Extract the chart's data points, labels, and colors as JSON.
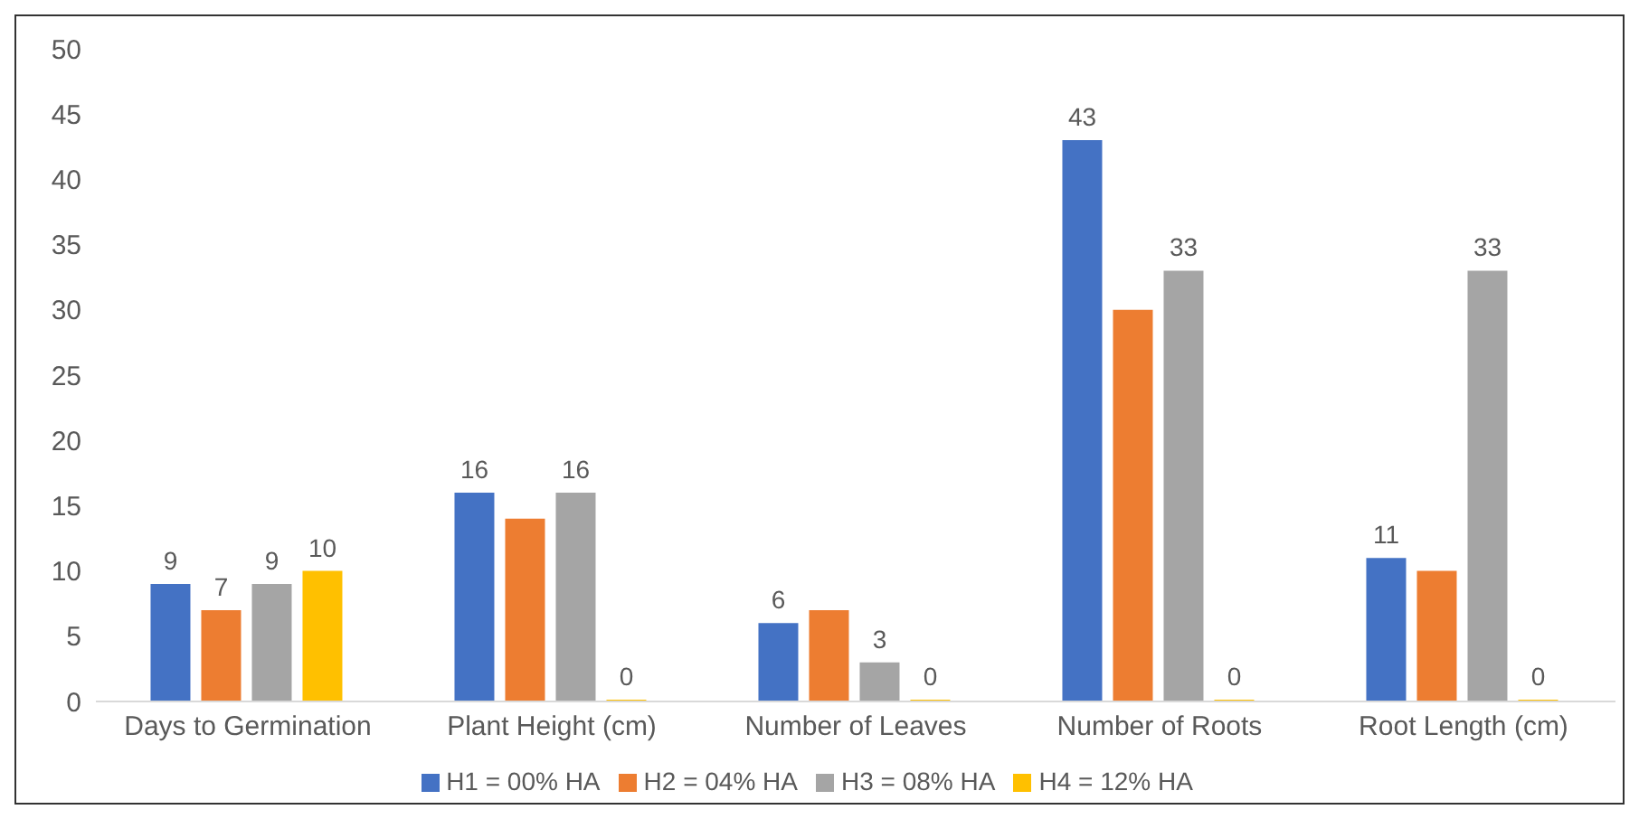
{
  "chart_data": {
    "type": "bar",
    "categories": [
      "Days to Germination",
      "Plant Height (cm)",
      "Number of Leaves",
      "Number of Roots",
      "Root Length (cm)"
    ],
    "series": [
      {
        "name": "H1 = 00% HA",
        "color": "#4472c4",
        "values": [
          9,
          16,
          6,
          43,
          11
        ],
        "value_labels": [
          "9",
          "16",
          "6",
          "43",
          "11"
        ]
      },
      {
        "name": "H2 = 04% HA",
        "color": "#ed7d31",
        "values": [
          7,
          14,
          7,
          30,
          10
        ],
        "value_labels": [
          "7",
          null,
          null,
          null,
          null
        ]
      },
      {
        "name": "H3 = 08% HA",
        "color": "#a5a5a5",
        "values": [
          9,
          16,
          3,
          33,
          33
        ],
        "value_labels": [
          "9",
          "16",
          "3",
          "33",
          "33"
        ]
      },
      {
        "name": "H4 = 12% HA",
        "color": "#ffc000",
        "values": [
          10,
          0,
          0,
          0,
          0
        ],
        "value_labels": [
          "10",
          "0",
          "0",
          "0",
          "0"
        ]
      }
    ],
    "ylim": [
      0,
      50
    ],
    "yticks": [
      0,
      5,
      10,
      15,
      20,
      25,
      30,
      35,
      40,
      45,
      50
    ],
    "grid": false,
    "legend": "bottom"
  }
}
